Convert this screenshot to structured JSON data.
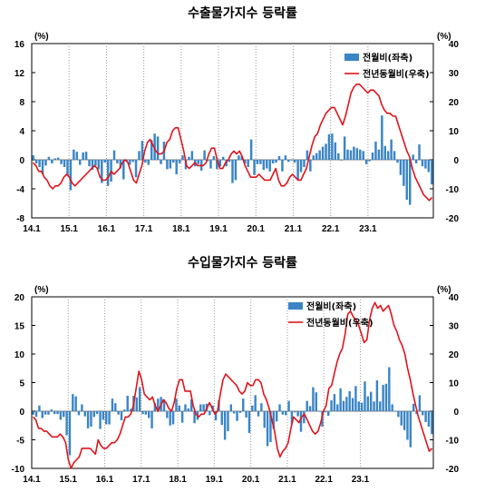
{
  "colors": {
    "bar": "#3a85c6",
    "line": "#e0141c",
    "axis": "#000000",
    "grid": "#9a9a9a"
  },
  "chart_data": [
    {
      "type": "bar",
      "title": "수출물가지수 등락률",
      "left_unit": "(%)",
      "right_unit": "(%)",
      "legend": {
        "bar": "전월비(좌축)",
        "line": "전년동월비(우축)",
        "placement": "top-right"
      },
      "x_ticks": [
        "14.1",
        "15.1",
        "16.1",
        "17.1",
        "18.1",
        "19.1",
        "20.1",
        "21.1",
        "22.1",
        "23.1"
      ],
      "ylim_left": [
        -8,
        16
      ],
      "yticks_left": [
        -8,
        -4,
        0,
        4,
        8,
        12,
        16
      ],
      "ylim_right": [
        -20,
        40
      ],
      "yticks_right": [
        -20,
        -10,
        0,
        10,
        20,
        30,
        40
      ],
      "grid": "vertical dotted at year starts",
      "series": [
        {
          "name": "전월비(좌축)",
          "axis": "left",
          "kind": "bar",
          "values": [
            0.6,
            -0.5,
            -1.0,
            -2.0,
            -0.8,
            0.4,
            -0.5,
            0.2,
            0.3,
            -0.6,
            -1.0,
            -2.2,
            -4.2,
            1.4,
            1.1,
            -0.7,
            1.0,
            1.1,
            -0.9,
            -1.4,
            -0.8,
            -1.3,
            -3.2,
            -0.4,
            -3.6,
            -3.0,
            1.3,
            -0.5,
            -1.2,
            -2.7,
            -0.2,
            -0.7,
            -0.3,
            -2.4,
            1.2,
            2.6,
            -0.4,
            -0.7,
            2.7,
            3.6,
            3.2,
            -0.6,
            2.5,
            -1.3,
            -1.2,
            -0.4,
            -2.0,
            -0.5,
            0.6,
            -1.3,
            0.4,
            1.2,
            -0.9,
            -0.6,
            -1.5,
            1.3,
            -0.2,
            -1.2,
            0.5,
            -1.3,
            -0.9,
            0.4,
            -0.9,
            -0.3,
            -3.2,
            -2.8,
            0.6,
            0.5,
            -0.5,
            -1.0,
            2.8,
            -2.1,
            -0.6,
            -0.6,
            -1.4,
            -1.2,
            -1.6,
            -0.5,
            -0.4,
            0.5,
            -1.6,
            0.6,
            -0.3,
            -0.1,
            -0.4,
            -2.8,
            -1.7,
            -1.0,
            1.3,
            -1.6,
            0.6,
            0.9,
            1.3,
            1.8,
            2.2,
            3.5,
            3.6,
            2.4,
            0.9,
            -0.1,
            3.2,
            1.4,
            1.3,
            1.8,
            1.6,
            1.4,
            1.2,
            -0.6,
            -0.2,
            1.0,
            2.5,
            1.4,
            6.1,
            1.9,
            1.2,
            2.8,
            1.2,
            -0.4,
            -2.1,
            -3.6,
            -5.5,
            -6.2,
            0.7,
            -0.5,
            2.1,
            -0.9,
            -1.2,
            -1.7,
            -3.4
          ]
        },
        {
          "name": "전년동월비(우축)",
          "axis": "right",
          "kind": "line",
          "values": [
            -1,
            -2,
            -4,
            -4,
            -6,
            -7,
            -9,
            -10,
            -9,
            -9,
            -8,
            -6,
            -5,
            -6,
            -8,
            -9,
            -8,
            -7,
            -6,
            -5,
            -4,
            -3,
            -2,
            -3,
            -6,
            -7,
            -7,
            -6,
            -4,
            -5,
            -4,
            -3,
            -1,
            0,
            -1,
            -4,
            -7,
            -8,
            -5,
            -2,
            3,
            6,
            7,
            5,
            3,
            2,
            2,
            3,
            6,
            7,
            10,
            11,
            11,
            7,
            3,
            -2,
            -3,
            -2,
            -1,
            -2,
            -2,
            -2,
            -1,
            2,
            4,
            4,
            0,
            -3,
            -3,
            -1,
            0,
            2,
            3,
            2,
            3,
            1,
            -2,
            -4,
            -6,
            -6,
            -6,
            -5,
            -6,
            -7,
            -7,
            -7,
            -5,
            -3,
            -7,
            -9,
            -9,
            -8,
            -6,
            -5,
            -6,
            -7,
            -7,
            -5,
            -3,
            1,
            5,
            8,
            9,
            12,
            14,
            16,
            17,
            18,
            18,
            16,
            14,
            12,
            15,
            19,
            23,
            25,
            26,
            26,
            25,
            24,
            23,
            24,
            24,
            23,
            22,
            19,
            17,
            16,
            16,
            15,
            15,
            12,
            9,
            6,
            3,
            1,
            -3,
            -6,
            -8,
            -10,
            -12,
            -13,
            -14,
            -13
          ]
        }
      ]
    },
    {
      "type": "bar",
      "title": "수입물가지수 등락률",
      "left_unit": "(%)",
      "right_unit": "(%)",
      "legend": {
        "bar": "전월비(좌축)",
        "line": "전년동월비(우축)",
        "placement": "top-right"
      },
      "x_ticks": [
        "14.1",
        "15.1",
        "16.1",
        "17.1",
        "18.1",
        "19.1",
        "20.1",
        "21.1",
        "22.1",
        "23.1"
      ],
      "ylim_left": [
        -10,
        20
      ],
      "yticks_left": [
        -10,
        -5,
        0,
        5,
        10,
        15,
        20
      ],
      "ylim_right": [
        -20,
        40
      ],
      "yticks_right": [
        -20,
        -10,
        0,
        10,
        20,
        30,
        40
      ],
      "grid": "vertical dotted at year starts",
      "series": [
        {
          "name": "전월비(좌축)",
          "axis": "left",
          "kind": "bar",
          "values": [
            -0.6,
            -1.0,
            1.0,
            -1.2,
            -0.6,
            -0.6,
            0.3,
            -0.5,
            -0.5,
            -1.5,
            -1.0,
            -4.2,
            -7.7,
            3.0,
            2.6,
            -0.7,
            1.2,
            -0.9,
            -3.0,
            -2.7,
            -1.0,
            -0.5,
            -3.1,
            -1.5,
            -2.3,
            -2.3,
            2.2,
            1.4,
            -0.6,
            -1.6,
            0.3,
            2.7,
            0.4,
            2.7,
            2.4,
            4.2,
            -0.5,
            -0.6,
            -1.2,
            -3.0,
            1.4,
            2.2,
            2.5,
            2.1,
            -1.2,
            -2.5,
            -2.3,
            2.2,
            1.0,
            -2.0,
            1.2,
            0.5,
            2.1,
            -2.1,
            -1.5,
            1.2,
            1.2,
            1.3,
            -0.7,
            1.0,
            -1.6,
            1.9,
            -2.4,
            -5.0,
            -3.5,
            1.2,
            -0.4,
            -1.7,
            -0.3,
            2.2,
            -1.1,
            -3.8,
            1.0,
            2.8,
            -0.9,
            1.4,
            -2.9,
            -6.1,
            -5.4,
            -3.1,
            -1.8,
            1.2,
            -0.6,
            -0.7,
            1.8,
            -2.2,
            -0.2,
            -0.9,
            -3.6,
            -2.1,
            1.8,
            0.9,
            4.2,
            3.3,
            -0.1,
            -2.7,
            -0.2,
            -0.8,
            1.9,
            3.0,
            1.2,
            4.0,
            1.8,
            2.5,
            3.5,
            2.3,
            4.4,
            1.7,
            1.5,
            5.2,
            2.6,
            3.4,
            1.7,
            5.4,
            1.7,
            4.6,
            4.8,
            7.7,
            1.2,
            -0.1,
            -1.0,
            -2.5,
            -3.3,
            -5.0,
            -6.3,
            1.3,
            -0.5,
            2.8,
            -0.7,
            -1.9,
            -2.7,
            -4.0
          ]
        },
        {
          "name": "전년동월비(우축)",
          "axis": "right",
          "kind": "line",
          "values": [
            -2,
            -3,
            -6,
            -6,
            -7,
            -7,
            -8,
            -9,
            -9,
            -9,
            -8,
            -9,
            -11,
            -17,
            -20,
            -18,
            -17,
            -16,
            -13,
            -13,
            -13,
            -13,
            -14,
            -15,
            -10,
            -12,
            -13,
            -13,
            -12,
            -11,
            -11,
            -10,
            -8,
            -5,
            -2,
            -2,
            -1,
            2,
            8,
            14,
            11,
            6,
            5,
            4,
            5,
            2,
            0,
            2,
            4,
            3,
            1,
            0,
            3,
            8,
            11,
            11,
            7,
            7,
            7,
            2,
            -1,
            -2,
            -1,
            -1,
            1,
            3,
            1,
            -1,
            0,
            6,
            11,
            13,
            12,
            11,
            10,
            9,
            7,
            6,
            7,
            10,
            9,
            9,
            11,
            11,
            10,
            6,
            4,
            1,
            -3,
            -7,
            -13,
            -16,
            -14,
            -13,
            -11,
            -6,
            -2,
            -3,
            -4,
            -2,
            -1,
            -3,
            -5,
            -7,
            -8,
            -7,
            -4,
            0,
            2,
            8,
            9,
            13,
            17,
            20,
            22,
            27,
            34,
            35,
            33,
            32,
            30,
            27,
            24,
            25,
            32,
            36,
            38,
            36,
            37,
            35,
            36,
            37,
            34,
            30,
            28,
            25,
            23,
            20,
            15,
            11,
            6,
            2,
            -2,
            -5,
            -8,
            -11,
            -14,
            -13
          ]
        }
      ]
    }
  ]
}
